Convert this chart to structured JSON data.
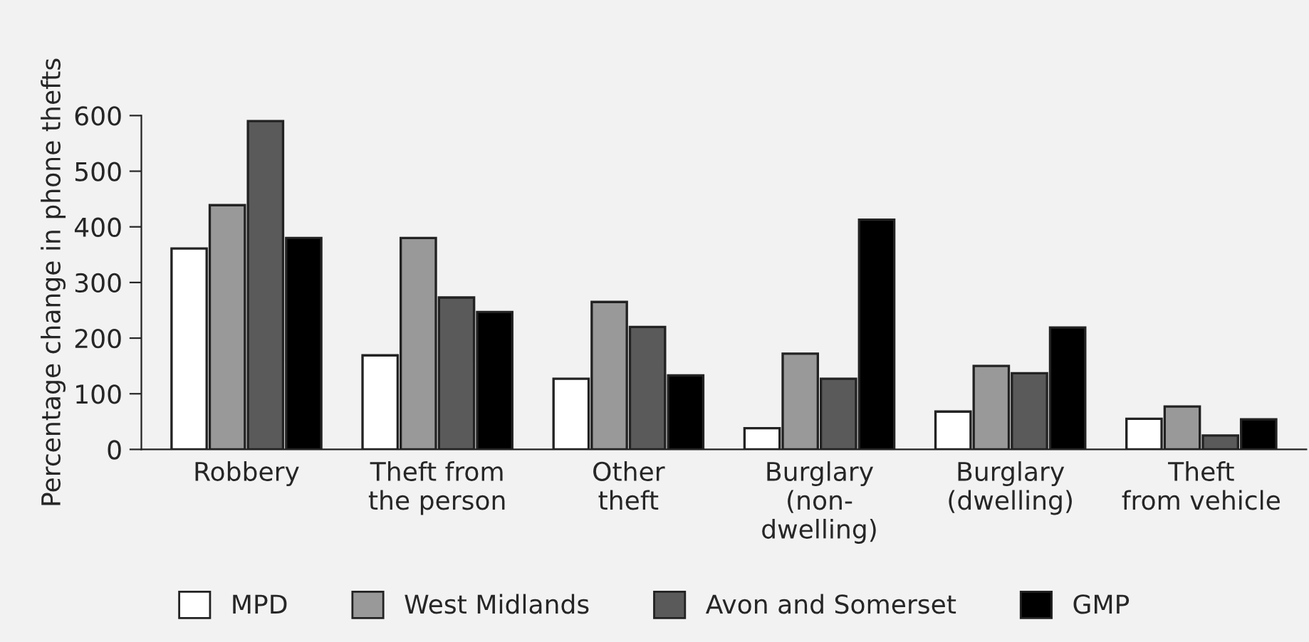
{
  "chart_data": {
    "type": "bar",
    "ylabel": "Percentage change in phone thefts",
    "categories": [
      "Robbery",
      "Theft from\nthe person",
      "Other\ntheft",
      "Burglary\n(non-\ndwelling)",
      "Burglary\n(dwelling)",
      "Theft\nfrom vehicle"
    ],
    "series": [
      {
        "name": "MPD",
        "color": "#ffffff",
        "values": [
          361,
          169,
          127,
          38,
          68,
          55
        ]
      },
      {
        "name": "West Midlands",
        "color": "#999999",
        "values": [
          439,
          380,
          265,
          172,
          150,
          77
        ]
      },
      {
        "name": "Avon and Somerset",
        "color": "#5a5a5a",
        "values": [
          590,
          273,
          220,
          127,
          137,
          25
        ]
      },
      {
        "name": "GMP",
        "color": "#000000",
        "values": [
          380,
          247,
          133,
          413,
          219,
          54
        ]
      }
    ],
    "ylim": [
      0,
      600
    ],
    "yticks": [
      0,
      100,
      200,
      300,
      400,
      500,
      600
    ],
    "grid": false,
    "legend": "bottom"
  }
}
